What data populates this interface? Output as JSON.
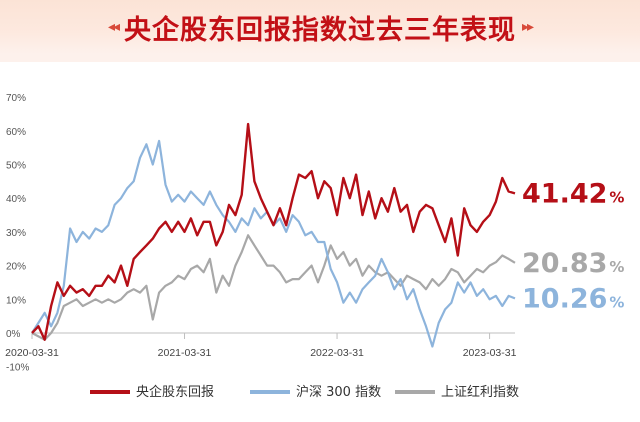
{
  "header": {
    "title": "央企股东回报指数过去三年表现",
    "ornament_left": "◂◂",
    "ornament_right": "▸▸"
  },
  "chart_data": {
    "type": "line",
    "title": "",
    "xlabel": "",
    "ylabel": "",
    "x_ticks": [
      "2020-03-31",
      "2021-03-31",
      "2022-03-31",
      "2023-03-31"
    ],
    "y_ticks": [
      "70%",
      "60%",
      "50%",
      "40%",
      "30%",
      "20%",
      "10%",
      "0%",
      "-10%"
    ],
    "ylim": [
      -10,
      70
    ],
    "x_unit": "months since 2020-03",
    "grid": false,
    "legend_position": "bottom",
    "series": [
      {
        "name": "央企股东回报",
        "color": "#b50f17",
        "final_label": "41.42",
        "unit": "%",
        "points": [
          [
            0,
            0
          ],
          [
            0.5,
            2
          ],
          [
            1,
            -2
          ],
          [
            1.5,
            8
          ],
          [
            2,
            15
          ],
          [
            2.5,
            11
          ],
          [
            3,
            14
          ],
          [
            3.5,
            12
          ],
          [
            4,
            13
          ],
          [
            4.5,
            11
          ],
          [
            5,
            14
          ],
          [
            5.5,
            14
          ],
          [
            6,
            17
          ],
          [
            6.5,
            15
          ],
          [
            7,
            20
          ],
          [
            7.5,
            14
          ],
          [
            8,
            22
          ],
          [
            8.5,
            24
          ],
          [
            9,
            26
          ],
          [
            9.5,
            28
          ],
          [
            10,
            31
          ],
          [
            10.5,
            33
          ],
          [
            11,
            30
          ],
          [
            11.5,
            33
          ],
          [
            12,
            30
          ],
          [
            12.5,
            34
          ],
          [
            13,
            29
          ],
          [
            13.5,
            33
          ],
          [
            14,
            33
          ],
          [
            14.5,
            26
          ],
          [
            15,
            30
          ],
          [
            15.5,
            38
          ],
          [
            16,
            35
          ],
          [
            16.5,
            41
          ],
          [
            17,
            62
          ],
          [
            17.5,
            45
          ],
          [
            18,
            40
          ],
          [
            18.5,
            36
          ],
          [
            19,
            32
          ],
          [
            19.5,
            37
          ],
          [
            20,
            32
          ],
          [
            20.5,
            40
          ],
          [
            21,
            47
          ],
          [
            21.5,
            46
          ],
          [
            22,
            48
          ],
          [
            22.5,
            40
          ],
          [
            23,
            45
          ],
          [
            23.5,
            43
          ],
          [
            24,
            35
          ],
          [
            24.5,
            46
          ],
          [
            25,
            40
          ],
          [
            25.5,
            47
          ],
          [
            26,
            35
          ],
          [
            26.5,
            42
          ],
          [
            27,
            34
          ],
          [
            27.5,
            40
          ],
          [
            28,
            36
          ],
          [
            28.5,
            43
          ],
          [
            29,
            36
          ],
          [
            29.5,
            38
          ],
          [
            30,
            30
          ],
          [
            30.5,
            36
          ],
          [
            31,
            38
          ],
          [
            31.5,
            37
          ],
          [
            32,
            32
          ],
          [
            32.5,
            27
          ],
          [
            33,
            34
          ],
          [
            33.5,
            23
          ],
          [
            34,
            37
          ],
          [
            34.5,
            32
          ],
          [
            35,
            30
          ],
          [
            35.5,
            33
          ],
          [
            36,
            35
          ],
          [
            36.5,
            39
          ],
          [
            37,
            46
          ],
          [
            37.5,
            42
          ],
          [
            38,
            41.42
          ]
        ]
      },
      {
        "name": "沪深 300 指数",
        "color": "#8db4dc",
        "final_label": "10.26",
        "unit": "%",
        "points": [
          [
            0,
            0
          ],
          [
            0.5,
            3
          ],
          [
            1,
            6
          ],
          [
            1.5,
            2
          ],
          [
            2,
            6
          ],
          [
            2.5,
            14
          ],
          [
            3,
            31
          ],
          [
            3.5,
            27
          ],
          [
            4,
            30
          ],
          [
            4.5,
            28
          ],
          [
            5,
            31
          ],
          [
            5.5,
            30
          ],
          [
            6,
            32
          ],
          [
            6.5,
            38
          ],
          [
            7,
            40
          ],
          [
            7.5,
            43
          ],
          [
            8,
            45
          ],
          [
            8.5,
            52
          ],
          [
            9,
            56
          ],
          [
            9.5,
            50
          ],
          [
            10,
            57
          ],
          [
            10.5,
            44
          ],
          [
            11,
            39
          ],
          [
            11.5,
            41
          ],
          [
            12,
            39
          ],
          [
            12.5,
            42
          ],
          [
            13,
            40
          ],
          [
            13.5,
            38
          ],
          [
            14,
            42
          ],
          [
            14.5,
            38
          ],
          [
            15,
            35
          ],
          [
            15.5,
            33
          ],
          [
            16,
            30
          ],
          [
            16.5,
            34
          ],
          [
            17,
            32
          ],
          [
            17.5,
            37
          ],
          [
            18,
            34
          ],
          [
            18.5,
            36
          ],
          [
            19,
            32
          ],
          [
            19.5,
            34
          ],
          [
            20,
            30
          ],
          [
            20.5,
            35
          ],
          [
            21,
            33
          ],
          [
            21.5,
            29
          ],
          [
            22,
            30
          ],
          [
            22.5,
            27
          ],
          [
            23,
            27
          ],
          [
            23.5,
            19
          ],
          [
            24,
            15
          ],
          [
            24.5,
            9
          ],
          [
            25,
            12
          ],
          [
            25.5,
            9
          ],
          [
            26,
            13
          ],
          [
            26.5,
            15
          ],
          [
            27,
            17
          ],
          [
            27.5,
            22
          ],
          [
            28,
            18
          ],
          [
            28.5,
            13
          ],
          [
            29,
            16
          ],
          [
            29.5,
            10
          ],
          [
            30,
            13
          ],
          [
            30.5,
            7
          ],
          [
            31,
            2
          ],
          [
            31.5,
            -4
          ],
          [
            32,
            3
          ],
          [
            32.5,
            7
          ],
          [
            33,
            9
          ],
          [
            33.5,
            15
          ],
          [
            34,
            12
          ],
          [
            34.5,
            15
          ],
          [
            35,
            11
          ],
          [
            35.5,
            13
          ],
          [
            36,
            10
          ],
          [
            36.5,
            11
          ],
          [
            37,
            8
          ],
          [
            37.5,
            11
          ],
          [
            38,
            10.26
          ]
        ]
      },
      {
        "name": "上证红利指数",
        "color": "#a8a8a8",
        "final_label": "20.83",
        "unit": "%",
        "points": [
          [
            0,
            0
          ],
          [
            0.5,
            -1
          ],
          [
            1,
            -2
          ],
          [
            1.5,
            0
          ],
          [
            2,
            3
          ],
          [
            2.5,
            8
          ],
          [
            3,
            9
          ],
          [
            3.5,
            10
          ],
          [
            4,
            8
          ],
          [
            4.5,
            9
          ],
          [
            5,
            10
          ],
          [
            5.5,
            9
          ],
          [
            6,
            10
          ],
          [
            6.5,
            9
          ],
          [
            7,
            10
          ],
          [
            7.5,
            12
          ],
          [
            8,
            13
          ],
          [
            8.5,
            12
          ],
          [
            9,
            14
          ],
          [
            9.5,
            4
          ],
          [
            10,
            12
          ],
          [
            10.5,
            14
          ],
          [
            11,
            15
          ],
          [
            11.5,
            17
          ],
          [
            12,
            16
          ],
          [
            12.5,
            19
          ],
          [
            13,
            20
          ],
          [
            13.5,
            18
          ],
          [
            14,
            22
          ],
          [
            14.5,
            12
          ],
          [
            15,
            17
          ],
          [
            15.5,
            14
          ],
          [
            16,
            20
          ],
          [
            16.5,
            24
          ],
          [
            17,
            29
          ],
          [
            17.5,
            26
          ],
          [
            18,
            23
          ],
          [
            18.5,
            20
          ],
          [
            19,
            20
          ],
          [
            19.5,
            18
          ],
          [
            20,
            15
          ],
          [
            20.5,
            16
          ],
          [
            21,
            16
          ],
          [
            21.5,
            18
          ],
          [
            22,
            20
          ],
          [
            22.5,
            15
          ],
          [
            23,
            20
          ],
          [
            23.5,
            26
          ],
          [
            24,
            22
          ],
          [
            24.5,
            24
          ],
          [
            25,
            20
          ],
          [
            25.5,
            22
          ],
          [
            26,
            17
          ],
          [
            26.5,
            20
          ],
          [
            27,
            18
          ],
          [
            27.5,
            17
          ],
          [
            28,
            18
          ],
          [
            28.5,
            16
          ],
          [
            29,
            14
          ],
          [
            29.5,
            17
          ],
          [
            30,
            16
          ],
          [
            30.5,
            15
          ],
          [
            31,
            13
          ],
          [
            31.5,
            16
          ],
          [
            32,
            14
          ],
          [
            32.5,
            16
          ],
          [
            33,
            19
          ],
          [
            33.5,
            18
          ],
          [
            34,
            15
          ],
          [
            34.5,
            17
          ],
          [
            35,
            19
          ],
          [
            35.5,
            18
          ],
          [
            36,
            20
          ],
          [
            36.5,
            21
          ],
          [
            37,
            23
          ],
          [
            37.5,
            22
          ],
          [
            38,
            20.83
          ]
        ]
      }
    ]
  }
}
